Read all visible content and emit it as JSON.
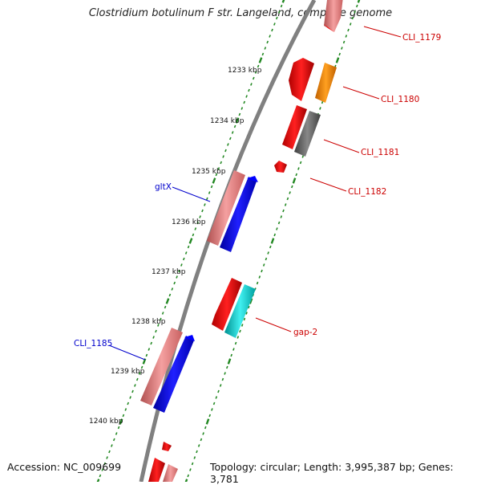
{
  "title": "Clostridium botulinum F str. Langeland, complete genome",
  "footer": {
    "accession": "Accession: NC_009699",
    "summary": "Topology: circular; Length: 3,995,387 bp; Genes: 3,781"
  },
  "ticks": [
    "1233 kbp",
    "1234 kbp",
    "1235 kbp",
    "1236 kbp",
    "1237 kbp",
    "1238 kbp",
    "1239 kbp",
    "1240 kbp"
  ],
  "gene_labels": {
    "cli1179": "CLI_1179",
    "cli1180": "CLI_1180",
    "cli1181": "CLI_1181",
    "cli1182": "CLI_1182",
    "gltx": "gltX",
    "gap2": "gap-2",
    "cli1185": "CLI_1185"
  },
  "colors": {
    "forward_label": "#cc0000",
    "reverse_label": "#0000cc",
    "backbone": "#808080",
    "tick_dots": "#228822"
  }
}
